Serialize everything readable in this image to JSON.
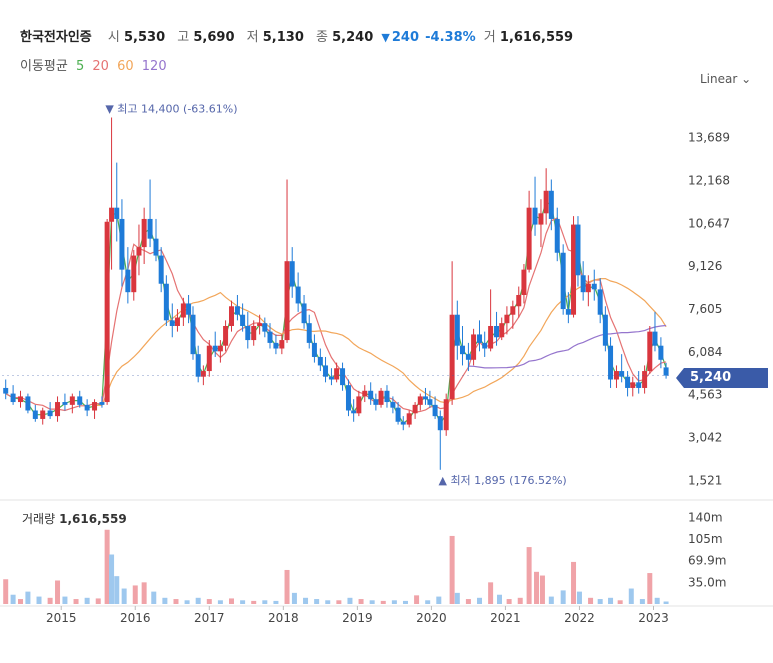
{
  "header": {
    "name": "한국전자인증",
    "open_label": "시",
    "open": "5,530",
    "high_label": "고",
    "high": "5,690",
    "low_label": "저",
    "low": "5,130",
    "close_label": "종",
    "close": "5,240",
    "change_symbol": "▼",
    "change": "240",
    "change_pct": "-4.38%",
    "volume_label": "거",
    "volume": "1,616,559"
  },
  "ma_legend": {
    "label": "이동평균",
    "items": [
      {
        "period": "5",
        "color": "#4caf50"
      },
      {
        "period": "20",
        "color": "#e57373"
      },
      {
        "period": "60",
        "color": "#f2a65a"
      },
      {
        "period": "120",
        "color": "#9575cd"
      }
    ]
  },
  "scale_button": {
    "label": "Linear",
    "icon": "chevron-down-icon"
  },
  "colors": {
    "up": "#d9363e",
    "down": "#1e7bd8",
    "up_volume": "#f0a3a8",
    "down_volume": "#9ec8ee",
    "current_tag": "#3a5ba8"
  },
  "chart_data": {
    "type": "candlestick",
    "y_ticks": [
      "13,689",
      "12,168",
      "10,647",
      "9,126",
      "7,605",
      "6,084",
      "4,563",
      "3,042",
      "1,521"
    ],
    "y_tick_values": [
      13689,
      12168,
      10647,
      9126,
      7605,
      6084,
      4563,
      3042,
      1521
    ],
    "x_ticks": [
      "2015",
      "2016",
      "2017",
      "2018",
      "2019",
      "2020",
      "2021",
      "2022",
      "2023"
    ],
    "x_range": [
      2014.2,
      2023.25
    ],
    "y_range": [
      1000,
      15200
    ],
    "current_price": "5,240",
    "current_value": 5240,
    "annotations": {
      "max": {
        "label": "최고",
        "value": "14,400",
        "pct": "(-63.61%)",
        "x": 2015.65,
        "y": 14400,
        "symbol": "▼"
      },
      "min": {
        "label": "최저",
        "value": "1,895",
        "pct": "(176.52%)",
        "x": 2020.15,
        "y": 1895,
        "symbol": "▲"
      }
    },
    "candles": [
      [
        2014.25,
        4800,
        5100,
        4400,
        4600
      ],
      [
        2014.35,
        4600,
        4900,
        4200,
        4300
      ],
      [
        2014.45,
        4300,
        4700,
        4100,
        4500
      ],
      [
        2014.55,
        4500,
        4600,
        3900,
        4000
      ],
      [
        2014.65,
        4000,
        4200,
        3600,
        3700
      ],
      [
        2014.75,
        3700,
        4100,
        3500,
        4000
      ],
      [
        2014.85,
        4000,
        4300,
        3700,
        3800
      ],
      [
        2014.95,
        3800,
        4500,
        3600,
        4300
      ],
      [
        2015.05,
        4300,
        4600,
        4000,
        4200
      ],
      [
        2015.15,
        4200,
        4600,
        3900,
        4500
      ],
      [
        2015.25,
        4500,
        4700,
        4100,
        4200
      ],
      [
        2015.35,
        4200,
        4400,
        3800,
        4000
      ],
      [
        2015.45,
        4000,
        4400,
        3700,
        4300
      ],
      [
        2015.55,
        4300,
        4500,
        4100,
        4200
      ],
      [
        2015.62,
        4300,
        10800,
        4200,
        10700
      ],
      [
        2015.68,
        10700,
        14400,
        9000,
        11200
      ],
      [
        2015.75,
        11200,
        12800,
        10000,
        10800
      ],
      [
        2015.82,
        10800,
        11500,
        8400,
        9000
      ],
      [
        2015.9,
        9000,
        9800,
        7800,
        8200
      ],
      [
        2015.98,
        8200,
        9700,
        7900,
        9500
      ],
      [
        2016.05,
        9500,
        10600,
        8800,
        9800
      ],
      [
        2016.12,
        9800,
        11200,
        9200,
        10800
      ],
      [
        2016.2,
        10800,
        12200,
        9800,
        10100
      ],
      [
        2016.28,
        10100,
        10800,
        9300,
        9500
      ],
      [
        2016.35,
        9500,
        9800,
        8200,
        8500
      ],
      [
        2016.42,
        8500,
        8800,
        7000,
        7200
      ],
      [
        2016.5,
        7200,
        7800,
        6600,
        7000
      ],
      [
        2016.57,
        7000,
        7600,
        6800,
        7300
      ],
      [
        2016.65,
        7300,
        8000,
        7000,
        7800
      ],
      [
        2016.72,
        7800,
        8100,
        7100,
        7400
      ],
      [
        2016.78,
        7400,
        7700,
        5800,
        6000
      ],
      [
        2016.85,
        6000,
        6300,
        5000,
        5200
      ],
      [
        2016.92,
        5200,
        5600,
        4900,
        5400
      ],
      [
        2017.0,
        5400,
        6500,
        5200,
        6300
      ],
      [
        2017.08,
        6300,
        6800,
        5900,
        6100
      ],
      [
        2017.15,
        6100,
        6500,
        5700,
        6300
      ],
      [
        2017.22,
        6300,
        7200,
        6100,
        7000
      ],
      [
        2017.3,
        7000,
        7900,
        6800,
        7700
      ],
      [
        2017.38,
        7700,
        8100,
        7200,
        7400
      ],
      [
        2017.45,
        7400,
        7800,
        6800,
        7000
      ],
      [
        2017.52,
        7000,
        7500,
        6200,
        6500
      ],
      [
        2017.6,
        6500,
        7200,
        6300,
        7000
      ],
      [
        2017.68,
        7000,
        7400,
        6700,
        7100
      ],
      [
        2017.75,
        7100,
        7300,
        6600,
        6800
      ],
      [
        2017.82,
        6800,
        7100,
        6200,
        6400
      ],
      [
        2017.9,
        6400,
        6700,
        6000,
        6200
      ],
      [
        2017.98,
        6200,
        6700,
        6000,
        6500
      ],
      [
        2018.05,
        6500,
        12200,
        6400,
        9300
      ],
      [
        2018.12,
        9300,
        9800,
        8000,
        8400
      ],
      [
        2018.2,
        8400,
        8900,
        7500,
        7800
      ],
      [
        2018.28,
        7800,
        8100,
        6900,
        7100
      ],
      [
        2018.35,
        7100,
        7400,
        6200,
        6400
      ],
      [
        2018.42,
        6400,
        6700,
        5700,
        5900
      ],
      [
        2018.5,
        5900,
        6200,
        5400,
        5600
      ],
      [
        2018.57,
        5600,
        5900,
        5000,
        5200
      ],
      [
        2018.65,
        5200,
        5500,
        4900,
        5100
      ],
      [
        2018.72,
        5100,
        5700,
        5000,
        5500
      ],
      [
        2018.8,
        5500,
        5700,
        4700,
        4900
      ],
      [
        2018.88,
        4900,
        5100,
        3800,
        4000
      ],
      [
        2018.95,
        4000,
        4400,
        3600,
        3900
      ],
      [
        2019.02,
        3900,
        4700,
        3800,
        4500
      ],
      [
        2019.1,
        4500,
        4900,
        4300,
        4700
      ],
      [
        2019.18,
        4700,
        5000,
        4200,
        4400
      ],
      [
        2019.25,
        4400,
        4600,
        4000,
        4200
      ],
      [
        2019.32,
        4200,
        4800,
        4100,
        4700
      ],
      [
        2019.4,
        4700,
        4900,
        4100,
        4300
      ],
      [
        2019.48,
        4300,
        4500,
        3900,
        4100
      ],
      [
        2019.55,
        4100,
        4300,
        3500,
        3600
      ],
      [
        2019.62,
        3600,
        3800,
        3300,
        3500
      ],
      [
        2019.7,
        3500,
        4000,
        3400,
        3900
      ],
      [
        2019.78,
        3900,
        4300,
        3700,
        4200
      ],
      [
        2019.85,
        4200,
        4600,
        4000,
        4500
      ],
      [
        2019.92,
        4500,
        4800,
        4200,
        4400
      ],
      [
        2019.98,
        4400,
        4700,
        4100,
        4200
      ],
      [
        2020.05,
        4200,
        4500,
        3700,
        3800
      ],
      [
        2020.12,
        3800,
        4000,
        1895,
        3300
      ],
      [
        2020.2,
        3300,
        4600,
        3100,
        4400
      ],
      [
        2020.28,
        4400,
        9300,
        4200,
        7400
      ],
      [
        2020.35,
        7400,
        7900,
        5800,
        6300
      ],
      [
        2020.42,
        6300,
        7000,
        5600,
        6000
      ],
      [
        2020.5,
        6000,
        6400,
        5400,
        5800
      ],
      [
        2020.57,
        5800,
        6900,
        5600,
        6700
      ],
      [
        2020.65,
        6700,
        7200,
        6100,
        6400
      ],
      [
        2020.72,
        6400,
        6800,
        5900,
        6200
      ],
      [
        2020.8,
        6200,
        8300,
        6100,
        7000
      ],
      [
        2020.88,
        7000,
        7500,
        6300,
        6600
      ],
      [
        2020.95,
        6600,
        7300,
        6500,
        7100
      ],
      [
        2021.02,
        7100,
        7700,
        6700,
        7400
      ],
      [
        2021.1,
        7400,
        7900,
        6900,
        7700
      ],
      [
        2021.18,
        7700,
        8400,
        7300,
        8100
      ],
      [
        2021.25,
        8100,
        9200,
        7800,
        9000
      ],
      [
        2021.32,
        9000,
        11800,
        8900,
        11200
      ],
      [
        2021.4,
        11200,
        12300,
        10200,
        10600
      ],
      [
        2021.48,
        10600,
        11500,
        9800,
        11000
      ],
      [
        2021.55,
        11000,
        12600,
        10600,
        11800
      ],
      [
        2021.62,
        11800,
        12200,
        10400,
        10800
      ],
      [
        2021.7,
        10800,
        11200,
        9300,
        9600
      ],
      [
        2021.78,
        9600,
        9900,
        7400,
        7600
      ],
      [
        2021.85,
        7600,
        8200,
        7100,
        7400
      ],
      [
        2021.92,
        7400,
        10900,
        7300,
        10600
      ],
      [
        2021.98,
        10600,
        10900,
        8400,
        8800
      ],
      [
        2022.05,
        8800,
        9300,
        7900,
        8200
      ],
      [
        2022.12,
        8200,
        8800,
        7700,
        8500
      ],
      [
        2022.2,
        8500,
        9000,
        7900,
        8300
      ],
      [
        2022.28,
        8300,
        8700,
        7100,
        7400
      ],
      [
        2022.35,
        7400,
        7700,
        6100,
        6300
      ],
      [
        2022.42,
        6300,
        6600,
        4800,
        5100
      ],
      [
        2022.5,
        5100,
        5600,
        4800,
        5400
      ],
      [
        2022.57,
        5400,
        6000,
        5000,
        5200
      ],
      [
        2022.65,
        5200,
        5400,
        4500,
        4800
      ],
      [
        2022.72,
        4800,
        5200,
        4500,
        5000
      ],
      [
        2022.8,
        5000,
        5400,
        4600,
        4800
      ],
      [
        2022.88,
        4800,
        5600,
        4600,
        5400
      ],
      [
        2022.95,
        5400,
        7000,
        5300,
        6800
      ],
      [
        2023.02,
        6800,
        7500,
        6100,
        6300
      ],
      [
        2023.1,
        6300,
        6600,
        5500,
        5800
      ],
      [
        2023.17,
        5530,
        5690,
        5130,
        5240
      ]
    ],
    "volume_ticks": [
      "140m",
      "105m",
      "69.9m",
      "35.0m"
    ],
    "volume_tick_values": [
      140,
      105,
      69.9,
      35
    ],
    "volume_max": 160,
    "volume_label": "거래량",
    "volume_value": "1,616,559",
    "volumes": [
      [
        2014.25,
        40,
        0
      ],
      [
        2014.35,
        15,
        1
      ],
      [
        2014.45,
        8,
        0
      ],
      [
        2014.55,
        20,
        1
      ],
      [
        2014.7,
        12,
        1
      ],
      [
        2014.85,
        10,
        0
      ],
      [
        2014.95,
        38,
        0
      ],
      [
        2015.05,
        12,
        1
      ],
      [
        2015.2,
        8,
        0
      ],
      [
        2015.35,
        10,
        1
      ],
      [
        2015.5,
        9,
        0
      ],
      [
        2015.62,
        120,
        0
      ],
      [
        2015.68,
        80,
        1
      ],
      [
        2015.75,
        45,
        1
      ],
      [
        2015.85,
        25,
        1
      ],
      [
        2016.0,
        30,
        0
      ],
      [
        2016.12,
        35,
        0
      ],
      [
        2016.25,
        20,
        1
      ],
      [
        2016.4,
        10,
        1
      ],
      [
        2016.55,
        8,
        0
      ],
      [
        2016.7,
        6,
        1
      ],
      [
        2016.85,
        10,
        1
      ],
      [
        2017.0,
        8,
        0
      ],
      [
        2017.15,
        6,
        1
      ],
      [
        2017.3,
        9,
        0
      ],
      [
        2017.45,
        6,
        1
      ],
      [
        2017.6,
        5,
        0
      ],
      [
        2017.75,
        6,
        1
      ],
      [
        2017.9,
        5,
        1
      ],
      [
        2018.05,
        55,
        0
      ],
      [
        2018.15,
        18,
        1
      ],
      [
        2018.3,
        10,
        1
      ],
      [
        2018.45,
        8,
        1
      ],
      [
        2018.6,
        6,
        1
      ],
      [
        2018.75,
        6,
        0
      ],
      [
        2018.9,
        10,
        1
      ],
      [
        2019.05,
        8,
        0
      ],
      [
        2019.2,
        6,
        1
      ],
      [
        2019.35,
        5,
        0
      ],
      [
        2019.5,
        6,
        1
      ],
      [
        2019.65,
        5,
        1
      ],
      [
        2019.8,
        14,
        0
      ],
      [
        2019.95,
        6,
        1
      ],
      [
        2020.1,
        12,
        1
      ],
      [
        2020.28,
        110,
        0
      ],
      [
        2020.35,
        18,
        1
      ],
      [
        2020.5,
        8,
        0
      ],
      [
        2020.65,
        10,
        1
      ],
      [
        2020.8,
        35,
        0
      ],
      [
        2020.92,
        15,
        1
      ],
      [
        2021.05,
        8,
        0
      ],
      [
        2021.2,
        10,
        0
      ],
      [
        2021.32,
        92,
        0
      ],
      [
        2021.42,
        52,
        0
      ],
      [
        2021.5,
        46,
        0
      ],
      [
        2021.62,
        12,
        1
      ],
      [
        2021.78,
        22,
        1
      ],
      [
        2021.92,
        68,
        0
      ],
      [
        2022.0,
        20,
        1
      ],
      [
        2022.15,
        10,
        0
      ],
      [
        2022.28,
        8,
        1
      ],
      [
        2022.42,
        10,
        1
      ],
      [
        2022.55,
        6,
        0
      ],
      [
        2022.7,
        25,
        1
      ],
      [
        2022.85,
        8,
        1
      ],
      [
        2022.95,
        50,
        0
      ],
      [
        2023.05,
        10,
        1
      ],
      [
        2023.17,
        4,
        1
      ]
    ]
  }
}
